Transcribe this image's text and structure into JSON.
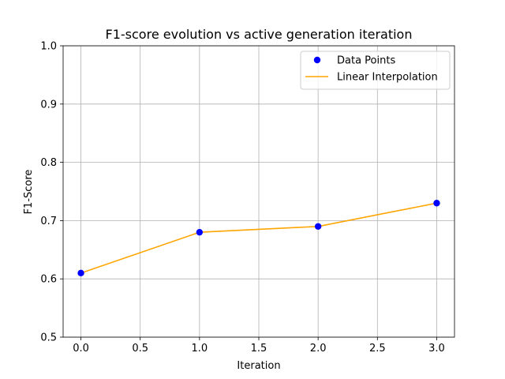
{
  "chart_data": {
    "type": "line",
    "title": "F1-score evolution vs active generation iteration",
    "xlabel": "Iteration",
    "ylabel": "F1-Score",
    "x": [
      0,
      1,
      2,
      3
    ],
    "xlim": [
      -0.15,
      3.15
    ],
    "ylim": [
      0.5,
      1.0
    ],
    "x_ticks": [
      0.0,
      0.5,
      1.0,
      1.5,
      2.0,
      2.5,
      3.0
    ],
    "x_tick_labels": [
      "0.0",
      "0.5",
      "1.0",
      "1.5",
      "2.0",
      "2.5",
      "3.0"
    ],
    "y_ticks": [
      0.5,
      0.6,
      0.7,
      0.8,
      0.9,
      1.0
    ],
    "y_tick_labels": [
      "0.5",
      "0.6",
      "0.7",
      "0.8",
      "0.9",
      "1.0"
    ],
    "grid": true,
    "legend_position": "top-right",
    "series": [
      {
        "name": "Data Points",
        "kind": "scatter",
        "color": "#0000ff",
        "y": [
          0.61,
          0.68,
          0.69,
          0.73
        ]
      },
      {
        "name": "Linear Interpolation",
        "kind": "line",
        "color": "#ffa500",
        "y": [
          0.61,
          0.68,
          0.69,
          0.73
        ]
      }
    ]
  }
}
